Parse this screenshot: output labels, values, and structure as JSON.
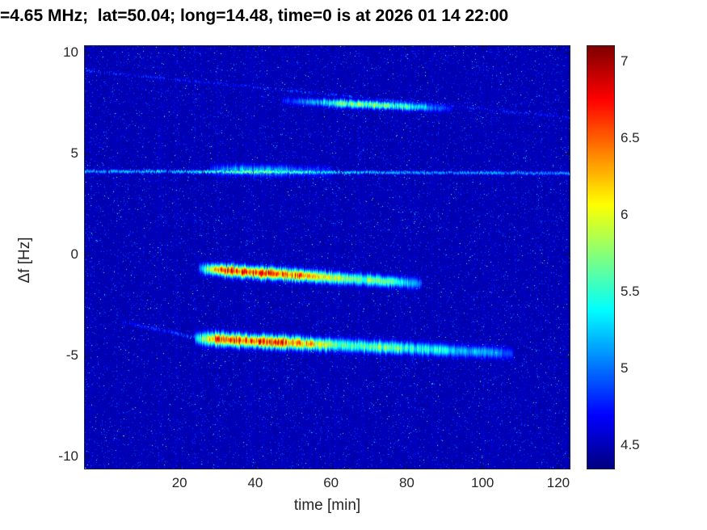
{
  "chart_data": {
    "type": "heatmap",
    "title": "=4.65 MHz;  lat=50.04; long=14.48, time=0 is at 2026 01 14 22:00",
    "xlabel": "time [min]",
    "ylabel": "Δf [Hz]",
    "colormap": "jet",
    "xlim": [
      -5,
      123
    ],
    "ylim": [
      -10.6,
      10.32
    ],
    "clim": [
      4.35,
      7.1
    ],
    "background_value": 4.45,
    "xticks": [
      20,
      40,
      60,
      80,
      100,
      120
    ],
    "yticks": [
      10,
      5,
      0,
      -5,
      -10
    ],
    "colorbar_ticks": [
      7,
      6.5,
      6,
      5.5,
      5,
      4.5
    ],
    "features": [
      {
        "name": "upper-emission-band",
        "spine_t": [
          47,
          92
        ],
        "spine_df": [
          7.62,
          7.22
        ],
        "width_hz": 0.14,
        "speckle": 0.5,
        "dropout": 0,
        "profile": [
          [
            47,
            4.8
          ],
          [
            53,
            5.2
          ],
          [
            58,
            5.6
          ],
          [
            63,
            6.0
          ],
          [
            68,
            6.2
          ],
          [
            73,
            6.15
          ],
          [
            78,
            5.9
          ],
          [
            83,
            5.55
          ],
          [
            88,
            5.15
          ],
          [
            92,
            4.8
          ]
        ]
      },
      {
        "name": "descending-faint-trace",
        "spine_t": [
          -5,
          123
        ],
        "spine_df": [
          9.1,
          6.78
        ],
        "width_hz": 0.05,
        "speckle": 0.6,
        "dropout": 0.45,
        "profile": [
          [
            -5,
            5.05
          ],
          [
            30,
            4.95
          ],
          [
            60,
            5.1
          ],
          [
            90,
            5.0
          ],
          [
            123,
            4.95
          ]
        ]
      },
      {
        "name": "narrow-line-4hz",
        "spine_t": [
          -5,
          123
        ],
        "spine_df": [
          4.12,
          4.02
        ],
        "width_hz": 0.06,
        "speckle": 0.35,
        "dropout": 0.1,
        "profile": [
          [
            -5,
            5.35
          ],
          [
            20,
            5.45
          ],
          [
            28,
            5.7
          ],
          [
            34,
            6.0
          ],
          [
            40,
            6.05
          ],
          [
            46,
            5.95
          ],
          [
            52,
            5.8
          ],
          [
            58,
            5.6
          ],
          [
            64,
            5.45
          ],
          [
            80,
            5.3
          ],
          [
            100,
            5.3
          ],
          [
            123,
            5.25
          ]
        ]
      },
      {
        "name": "line-4hz-halo",
        "spine_t": [
          28,
          60
        ],
        "spine_df": [
          4.2,
          4.1
        ],
        "width_hz": 0.2,
        "speckle": 0.55,
        "dropout": 0,
        "profile": [
          [
            28,
            5.0
          ],
          [
            36,
            5.5
          ],
          [
            44,
            5.5
          ],
          [
            52,
            5.2
          ],
          [
            60,
            4.9
          ]
        ]
      },
      {
        "name": "strong-streak-minus1hz",
        "spine_t": [
          25,
          84
        ],
        "spine_df": [
          -0.7,
          -1.45
        ],
        "width_hz": 0.2,
        "speckle": 0.35,
        "dropout": 0,
        "profile": [
          [
            25,
            5.0
          ],
          [
            27,
            5.8
          ],
          [
            29,
            6.5
          ],
          [
            31,
            6.9
          ],
          [
            34,
            7.08
          ],
          [
            40,
            7.1
          ],
          [
            46,
            7.08
          ],
          [
            50,
            7.0
          ],
          [
            54,
            6.8
          ],
          [
            57,
            6.5
          ],
          [
            60,
            6.3
          ],
          [
            63,
            6.1
          ],
          [
            66,
            5.9
          ],
          [
            69,
            6.0
          ],
          [
            72,
            6.05
          ],
          [
            75,
            5.9
          ],
          [
            78,
            5.7
          ],
          [
            81,
            5.4
          ],
          [
            84,
            5.0
          ]
        ]
      },
      {
        "name": "strong-streak-minus4hz",
        "spine_t": [
          24,
          108
        ],
        "spine_df": [
          -4.15,
          -4.9
        ],
        "width_hz": 0.22,
        "speckle": 0.4,
        "dropout": 0,
        "profile": [
          [
            24,
            5.2
          ],
          [
            26,
            6.0
          ],
          [
            28,
            6.6
          ],
          [
            30,
            7.0
          ],
          [
            34,
            7.1
          ],
          [
            42,
            7.12
          ],
          [
            48,
            7.05
          ],
          [
            52,
            6.9
          ],
          [
            55,
            6.6
          ],
          [
            58,
            6.3
          ],
          [
            61,
            6.1
          ],
          [
            64,
            5.9
          ],
          [
            68,
            5.8
          ],
          [
            72,
            6.0
          ],
          [
            76,
            5.95
          ],
          [
            80,
            5.8
          ],
          [
            84,
            5.6
          ],
          [
            88,
            5.7
          ],
          [
            92,
            5.5
          ],
          [
            96,
            5.3
          ],
          [
            100,
            5.4
          ],
          [
            104,
            5.2
          ],
          [
            108,
            4.9
          ]
        ]
      },
      {
        "name": "lead-in-trace",
        "spine_t": [
          5,
          24
        ],
        "spine_df": [
          -3.35,
          -4.1
        ],
        "width_hz": 0.07,
        "speckle": 0.5,
        "dropout": 0.3,
        "profile": [
          [
            5,
            4.85
          ],
          [
            14,
            5.0
          ],
          [
            24,
            5.1
          ]
        ]
      }
    ]
  }
}
